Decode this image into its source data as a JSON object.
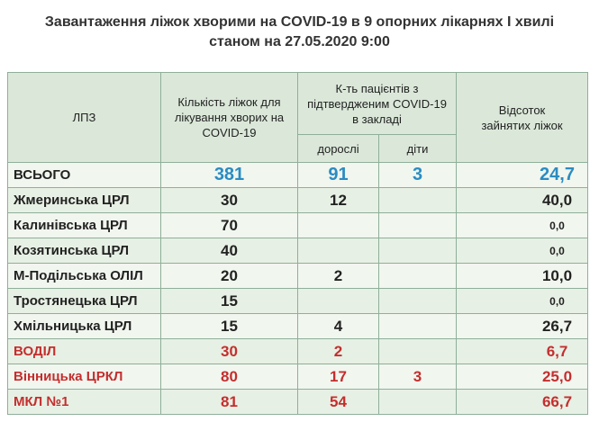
{
  "title": {
    "line1": "Завантаження ліжок хворими на COVID-19 в 9 опорних лікарнях І хвилі",
    "line2": "станом  на 27.05.2020  9:00"
  },
  "headers": {
    "lpz": "ЛПЗ",
    "beds": "Кількість ліжок для лікування хворих на  COVID-19",
    "patients": "К-ть пацієнтів з підтвердженим COVID-19 в закладі",
    "adults": "дорослі",
    "children": "діти",
    "percent": "Відсоток зайнятих ліжок"
  },
  "rows": [
    {
      "name": "ВСЬОГО",
      "beds": "381",
      "adults": "91",
      "children": "3",
      "percent": "24,7"
    },
    {
      "name": "Жмеринська ЦРЛ",
      "beds": "30",
      "adults": "12",
      "children": "",
      "percent": "40,0"
    },
    {
      "name": "Калинівська ЦРЛ",
      "beds": "70",
      "adults": "",
      "children": "",
      "percent": "0,0"
    },
    {
      "name": "Козятинська ЦРЛ",
      "beds": "40",
      "adults": "",
      "children": "",
      "percent": "0,0"
    },
    {
      "name": "М-Подільська ОЛІЛ",
      "beds": "20",
      "adults": "2",
      "children": "",
      "percent": "10,0"
    },
    {
      "name": "Тростянецька ЦРЛ",
      "beds": "15",
      "adults": "",
      "children": "",
      "percent": "0,0"
    },
    {
      "name": "Хмільницька ЦРЛ",
      "beds": "15",
      "adults": "4",
      "children": "",
      "percent": "26,7"
    },
    {
      "name": "ВОДІЛ",
      "beds": "30",
      "adults": "2",
      "children": "",
      "percent": "6,7"
    },
    {
      "name": "Вінницька ЦРКЛ",
      "beds": "80",
      "adults": "17",
      "children": "3",
      "percent": "25,0"
    },
    {
      "name": "МКЛ №1",
      "beds": "81",
      "adults": "54",
      "children": "",
      "percent": "66,7"
    }
  ],
  "colors": {
    "total_highlight": "#2a8cc2",
    "red_highlight": "#c42e2e",
    "header_bg": "#dbe8d9",
    "row_bg": "#f1f6ef",
    "border": "#8faf9a"
  }
}
